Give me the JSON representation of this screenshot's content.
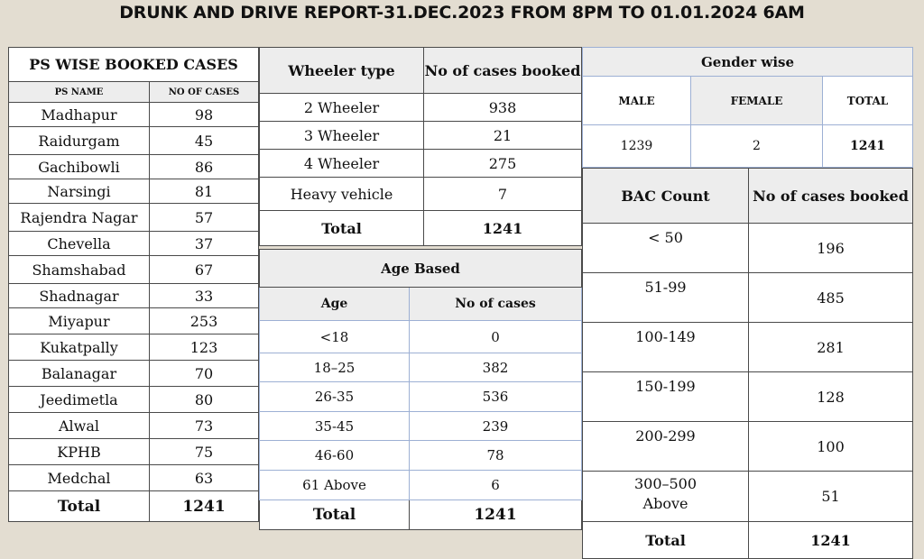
{
  "title": "DRUNK AND DRIVE REPORT-31.DEC.2023 FROM 8PM TO 01.01.2024 6AM",
  "ps_table": {
    "caption": "PS WISE BOOKED CASES",
    "col_ps": "PS NAME",
    "col_cases": "NO OF CASES",
    "rows": [
      {
        "name": "Madhapur",
        "cases": "98"
      },
      {
        "name": "Raidurgam",
        "cases": "45"
      },
      {
        "name": "Gachibowli",
        "cases": "86"
      },
      {
        "name": "Narsingi",
        "cases": "81"
      },
      {
        "name": "Rajendra Nagar",
        "cases": "57"
      },
      {
        "name": "Chevella",
        "cases": "37"
      },
      {
        "name": "Shamshabad",
        "cases": "67"
      },
      {
        "name": "Shadnagar",
        "cases": "33"
      },
      {
        "name": "Miyapur",
        "cases": "253"
      },
      {
        "name": "Kukatpally",
        "cases": "123"
      },
      {
        "name": "Balanagar",
        "cases": "70"
      },
      {
        "name": "Jeedimetla",
        "cases": "80"
      },
      {
        "name": "Alwal",
        "cases": "73"
      },
      {
        "name": "KPHB",
        "cases": "75"
      },
      {
        "name": "Medchal",
        "cases": "63"
      }
    ],
    "total_label": "Total",
    "total_value": "1241"
  },
  "wheeler_table": {
    "col_type": "Wheeler type",
    "col_cases": "No of cases booked",
    "rows": [
      {
        "type": "2 Wheeler",
        "cases": "938"
      },
      {
        "type": "3 Wheeler",
        "cases": "21"
      },
      {
        "type": "4 Wheeler",
        "cases": "275"
      },
      {
        "type": "Heavy vehicle",
        "cases": "7"
      }
    ],
    "total_label": "Total",
    "total_value": "1241"
  },
  "age_table": {
    "caption": "Age Based",
    "col_age": "Age",
    "col_cases": "No of cases",
    "rows": [
      {
        "age": "<18",
        "cases": "0"
      },
      {
        "age": "18–25",
        "cases": "382"
      },
      {
        "age": "26-35",
        "cases": "536"
      },
      {
        "age": "35-45",
        "cases": "239"
      },
      {
        "age": "46-60",
        "cases": "78"
      },
      {
        "age": "61 Above",
        "cases": "6"
      }
    ],
    "total_label": "Total",
    "total_value": "1241"
  },
  "gender_table": {
    "caption": "Gender wise",
    "col_male": "MALE",
    "col_female": "FEMALE",
    "col_total": "TOTAL",
    "male": "1239",
    "female": "2",
    "total": "1241"
  },
  "bac_table": {
    "col_bac": "BAC Count",
    "col_cases": "No of cases booked",
    "rows": [
      {
        "range": "< 50",
        "cases": "196"
      },
      {
        "range": "51-99",
        "cases": "485"
      },
      {
        "range": "100-149",
        "cases": "281"
      },
      {
        "range": "150-199",
        "cases": "128"
      },
      {
        "range": "200-299",
        "cases": "100"
      }
    ],
    "last_range_line1": "300–500",
    "last_range_line2": "Above",
    "last_cases": "51",
    "total_label": "Total",
    "total_value": "1241"
  }
}
